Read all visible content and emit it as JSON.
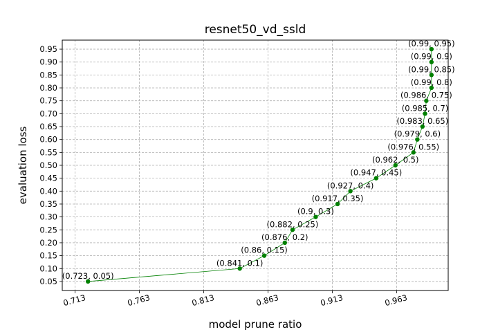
{
  "chart_data": {
    "type": "line",
    "title": "resnet50_vd_ssld",
    "xlabel": "model prune ratio",
    "ylabel": "evaluation loss",
    "xlim": [
      0.703,
      1.003
    ],
    "ylim": [
      0.015,
      0.985
    ],
    "x_ticks": [
      "0.713",
      "0.763",
      "0.813",
      "0.863",
      "0.913",
      "0.963"
    ],
    "y_ticks": [
      "0.05",
      "0.10",
      "0.15",
      "0.20",
      "0.25",
      "0.30",
      "0.35",
      "0.40",
      "0.45",
      "0.50",
      "0.55",
      "0.60",
      "0.65",
      "0.70",
      "0.75",
      "0.80",
      "0.85",
      "0.90",
      "0.95"
    ],
    "grid": true,
    "color": "#008000",
    "series": [
      {
        "x": [
          0.723,
          0.841,
          0.86,
          0.876,
          0.882,
          0.9,
          0.917,
          0.927,
          0.947,
          0.962,
          0.976,
          0.979,
          0.983,
          0.985,
          0.986,
          0.99,
          0.99,
          0.99,
          0.99
        ],
        "y": [
          0.05,
          0.1,
          0.15,
          0.2,
          0.25,
          0.3,
          0.35,
          0.4,
          0.45,
          0.5,
          0.55,
          0.6,
          0.65,
          0.7,
          0.75,
          0.8,
          0.85,
          0.9,
          0.95
        ],
        "labels": [
          "(0.723, 0.05)",
          "(0.841, 0.1)",
          "(0.86, 0.15)",
          "(0.876, 0.2)",
          "(0.882, 0.25)",
          "(0.9, 0.3)",
          "(0.917, 0.35)",
          "(0.927, 0.4)",
          "(0.947, 0.45)",
          "(0.962, 0.5)",
          "(0.976, 0.55)",
          "(0.979, 0.6)",
          "(0.983, 0.65)",
          "(0.985, 0.7)",
          "(0.986, 0.75)",
          "(0.99, 0.8)",
          "(0.99, 0.85)",
          "(0.99, 0.9)",
          "(0.99, 0.95)"
        ]
      }
    ]
  }
}
